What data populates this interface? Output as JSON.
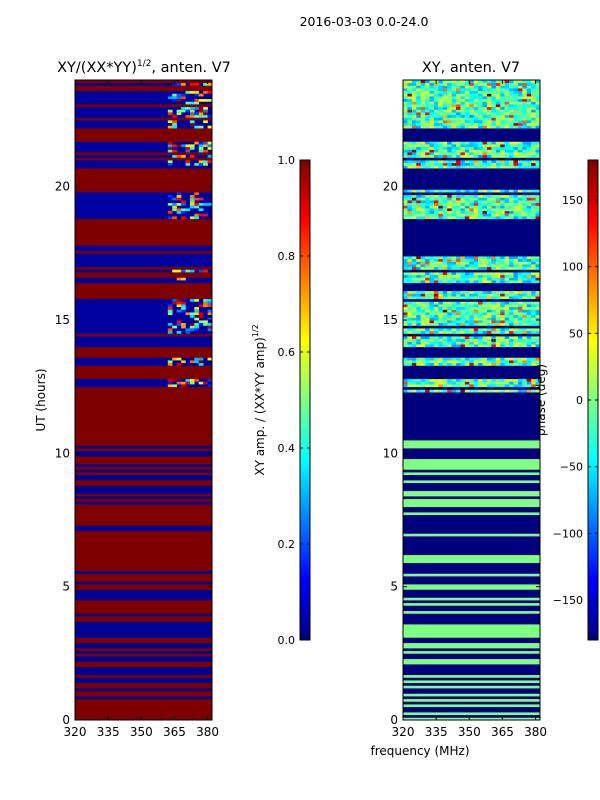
{
  "figure": {
    "suptitle": "2016-03-03 0.0-24.0",
    "shared_xlabel": "frequency (MHz)"
  },
  "colors": {
    "jet_stops": [
      "#00007f",
      "#0000ff",
      "#007fff",
      "#00ffff",
      "#7fff7f",
      "#ffff00",
      "#ff7f00",
      "#ff0000",
      "#7f0000"
    ],
    "frame": "#000000",
    "background": "#ffffff"
  },
  "chart_data": [
    {
      "type": "heatmap",
      "id": "amp",
      "title": "XY/(XX*YY)",
      "title_superscript": "1/2",
      "title_suffix": ", anten. V7",
      "xlabel": "",
      "ylabel": "UT (hours)",
      "xlim": [
        320,
        382
      ],
      "ylim": [
        0,
        24
      ],
      "xticks": [
        320,
        335,
        350,
        365,
        380
      ],
      "yticks": [
        0,
        5,
        10,
        15,
        20
      ],
      "colormap": "jet",
      "colorbar": {
        "label": "XY amp. / (XX*YY amp)",
        "label_superscript": "1/2",
        "vmin": 0.0,
        "vmax": 1.0,
        "ticks": [
          "0.0",
          "0.2",
          "0.4",
          "0.6",
          "0.8",
          "1.0"
        ],
        "tick_values": [
          0.0,
          0.2,
          0.4,
          0.6,
          0.8,
          1.0
        ]
      },
      "saturated_blocks_hours": [
        [
          0.1,
          0.8
        ],
        [
          5.9,
          7.1
        ],
        [
          10.5,
          12.3
        ],
        [
          12.9,
          13.3
        ],
        [
          13.6,
          14.0
        ],
        [
          16.1,
          16.4
        ],
        [
          17.8,
          18.8
        ],
        [
          19.9,
          20.7
        ],
        [
          21.8,
          22.2
        ]
      ],
      "active_band_MHz": [
        363,
        381
      ],
      "active_band_hours": [
        [
          12.4,
          13.6
        ],
        [
          14.5,
          16.2
        ],
        [
          16.5,
          17.0
        ],
        [
          18.0,
          20.0
        ],
        [
          20.8,
          24.0
        ]
      ]
    },
    {
      "type": "heatmap",
      "id": "phase",
      "title": "XY, anten. V7",
      "xlabel": "frequency (MHz)",
      "ylabel": "",
      "xlim": [
        320,
        382
      ],
      "ylim": [
        0,
        24
      ],
      "xticks": [
        320,
        335,
        350,
        365,
        380
      ],
      "yticks": [
        0,
        5,
        10,
        15,
        20
      ],
      "colormap": "jet",
      "colorbar": {
        "label": "phase (deg)",
        "vmin": -180,
        "vmax": 180,
        "ticks": [
          "−150",
          "−100",
          "−50",
          "0",
          "50",
          "100",
          "150"
        ],
        "tick_values": [
          -150,
          -100,
          -50,
          0,
          50,
          100,
          150
        ]
      },
      "flat_region_hours": [
        0,
        10.5
      ],
      "flat_phase_deg": 0,
      "blanked_phase_deg": -180,
      "noisy_region_hours": [
        10.5,
        24
      ]
    }
  ]
}
